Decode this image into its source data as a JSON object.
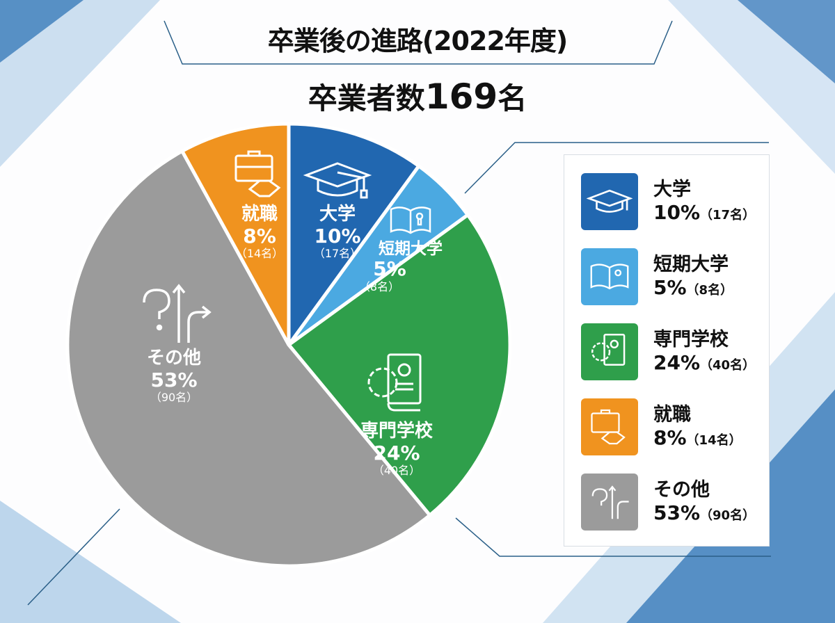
{
  "chart_data": {
    "type": "pie",
    "title": "卒業後の進路(2022年度)",
    "subtitle_prefix": "卒業者数",
    "subtitle_number": "169",
    "subtitle_suffix": "名",
    "total": 169,
    "legend_position": "right",
    "slices": [
      {
        "label": "大学",
        "percent": 10,
        "percent_label": "10%",
        "count": 17,
        "count_label": "（17名）",
        "color": "#2167b0",
        "icon": "graduation-cap-icon"
      },
      {
        "label": "短期大学",
        "percent": 5,
        "percent_label": "5%",
        "count": 8,
        "count_label": "（8名）",
        "color": "#4ba9e1",
        "icon": "open-book-icon"
      },
      {
        "label": "専門学校",
        "percent": 24,
        "percent_label": "24%",
        "count": 40,
        "count_label": "（40名）",
        "color": "#2f9f4b",
        "icon": "gear-book-icon"
      },
      {
        "label": "その他",
        "percent": 53,
        "percent_label": "53%",
        "count": 90,
        "count_label": "（90名）",
        "color": "#9b9b9b",
        "icon": "question-arrow-icon"
      },
      {
        "label": "就職",
        "percent": 8,
        "percent_label": "8%",
        "count": 14,
        "count_label": "（14名）",
        "color": "#f0931f",
        "icon": "briefcase-handshake-icon"
      }
    ]
  }
}
